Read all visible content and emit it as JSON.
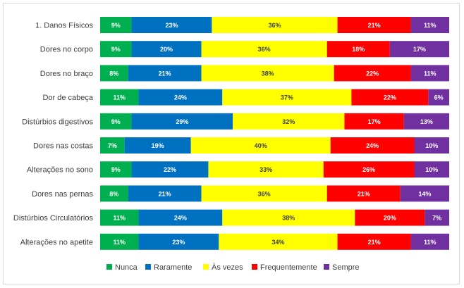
{
  "chart_data": {
    "type": "bar",
    "orientation": "horizontal",
    "stacked": "percent",
    "categories": [
      "1. Danos Físicos",
      "Dores no corpo",
      "Dores no braço",
      "Dor de cabeça",
      "Distúrbios digestivos",
      "Dores nas costas",
      "Alterações no sono",
      "Dores nas pernas",
      "Distúrbios Circulatórios",
      "Alterações no apetite"
    ],
    "series": [
      {
        "name": "Nunca",
        "color": "#00b050",
        "values": [
          9,
          9,
          8,
          11,
          9,
          7,
          9,
          8,
          11,
          11
        ]
      },
      {
        "name": "Raramente",
        "color": "#0070c0",
        "values": [
          23,
          20,
          21,
          24,
          29,
          19,
          22,
          21,
          24,
          23
        ]
      },
      {
        "name": "Às vezes",
        "color": "#ffff00",
        "values": [
          36,
          36,
          38,
          37,
          32,
          40,
          33,
          36,
          38,
          34
        ]
      },
      {
        "name": "Frequentemente",
        "color": "#ff0000",
        "values": [
          21,
          18,
          22,
          22,
          17,
          24,
          26,
          21,
          20,
          21
        ]
      },
      {
        "name": "Sempre",
        "color": "#7030a0",
        "values": [
          11,
          17,
          11,
          6,
          13,
          10,
          10,
          14,
          7,
          11
        ]
      }
    ],
    "value_suffix": "%",
    "legend_position": "bottom",
    "grid": false
  }
}
